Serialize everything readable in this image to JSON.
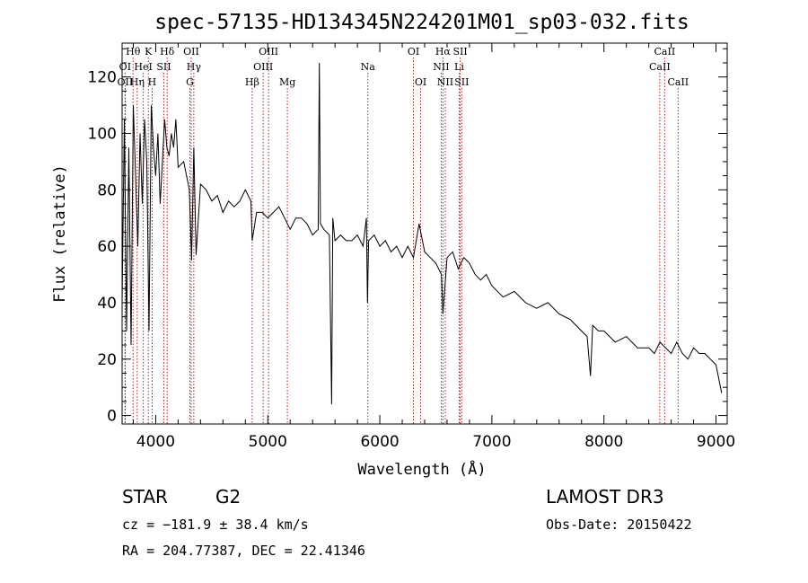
{
  "chart_data": {
    "type": "line",
    "title": "spec-57135-HD134345N224201M01_sp03-032.fits",
    "xlabel": "Wavelength (Å)",
    "ylabel": "Flux (relative)",
    "xlim": [
      3700,
      9100
    ],
    "ylim": [
      -3,
      132
    ],
    "xticks": [
      4000,
      5000,
      6000,
      7000,
      8000,
      9000
    ],
    "yticks": [
      0,
      20,
      40,
      60,
      80,
      100,
      120
    ],
    "xtick_labels": [
      "4000",
      "5000",
      "6000",
      "7000",
      "8000",
      "9000"
    ],
    "ytick_labels": [
      "0",
      "20",
      "40",
      "60",
      "80",
      "100",
      "120"
    ],
    "line_color": "#000000",
    "marker_color": "#b22222",
    "series": [
      {
        "name": "spectrum",
        "x": [
          3700,
          3720,
          3740,
          3760,
          3780,
          3800,
          3820,
          3840,
          3860,
          3880,
          3900,
          3920,
          3940,
          3960,
          3980,
          4000,
          4020,
          4040,
          4060,
          4080,
          4100,
          4120,
          4140,
          4160,
          4180,
          4200,
          4250,
          4300,
          4320,
          4340,
          4360,
          4400,
          4450,
          4500,
          4550,
          4600,
          4650,
          4700,
          4750,
          4800,
          4850,
          4861,
          4900,
          4950,
          5000,
          5050,
          5100,
          5150,
          5200,
          5250,
          5300,
          5350,
          5400,
          5450,
          5460,
          5470,
          5500,
          5550,
          5570,
          5580,
          5590,
          5600,
          5650,
          5700,
          5750,
          5800,
          5850,
          5880,
          5890,
          5900,
          5950,
          6000,
          6050,
          6100,
          6150,
          6200,
          6250,
          6300,
          6350,
          6400,
          6450,
          6500,
          6550,
          6563,
          6600,
          6650,
          6700,
          6750,
          6800,
          6850,
          6900,
          6950,
          7000,
          7100,
          7200,
          7300,
          7400,
          7500,
          7600,
          7700,
          7800,
          7850,
          7880,
          7900,
          7950,
          8000,
          8100,
          8200,
          8300,
          8400,
          8450,
          8500,
          8550,
          8600,
          8650,
          8700,
          8750,
          8800,
          8850,
          8900,
          8950,
          9000,
          9050
        ],
        "y": [
          40,
          105,
          30,
          95,
          25,
          110,
          85,
          60,
          100,
          75,
          105,
          90,
          30,
          110,
          95,
          85,
          100,
          75,
          90,
          105,
          95,
          92,
          100,
          95,
          105,
          88,
          90,
          80,
          55,
          95,
          57,
          82,
          80,
          76,
          78,
          72,
          76,
          74,
          76,
          80,
          76,
          62,
          72,
          72,
          70,
          72,
          74,
          70,
          66,
          70,
          70,
          68,
          64,
          66,
          125,
          68,
          66,
          64,
          4,
          70,
          66,
          62,
          64,
          62,
          62,
          64,
          60,
          70,
          40,
          62,
          64,
          60,
          62,
          58,
          60,
          56,
          60,
          56,
          68,
          58,
          56,
          54,
          50,
          36,
          56,
          58,
          52,
          56,
          54,
          50,
          48,
          50,
          46,
          42,
          44,
          40,
          38,
          40,
          36,
          34,
          30,
          28,
          14,
          32,
          30,
          30,
          26,
          28,
          24,
          24,
          22,
          26,
          24,
          22,
          26,
          22,
          20,
          24,
          22,
          22,
          20,
          18,
          8
        ]
      }
    ],
    "line_markers": [
      {
        "label": "Hθ",
        "x": 3798,
        "row": 0
      },
      {
        "label": "K",
        "x": 3934,
        "row": 0
      },
      {
        "label": "Hδ",
        "x": 4102,
        "row": 0
      },
      {
        "label": "OII",
        "x": 4317,
        "row": 0
      },
      {
        "label": "OIII",
        "x": 5007,
        "row": 0
      },
      {
        "label": "OI",
        "x": 6300,
        "row": 0
      },
      {
        "label": "Hα",
        "x": 6563,
        "row": 0
      },
      {
        "label": "SII",
        "x": 6717,
        "row": 0
      },
      {
        "label": "CaII",
        "x": 8542,
        "row": 0
      },
      {
        "label": "OI",
        "x": 3727,
        "row": 1
      },
      {
        "label": "HeI",
        "x": 3889,
        "row": 1
      },
      {
        "label": "SII",
        "x": 4072,
        "row": 1
      },
      {
        "label": "Hγ",
        "x": 4340,
        "row": 1
      },
      {
        "label": "OIII",
        "x": 4959,
        "row": 1
      },
      {
        "label": "Na",
        "x": 5893,
        "row": 1
      },
      {
        "label": "NII",
        "x": 6548,
        "row": 1
      },
      {
        "label": "Li",
        "x": 6708,
        "row": 1
      },
      {
        "label": "CaII",
        "x": 8498,
        "row": 1
      },
      {
        "label": "OII",
        "x": 3727,
        "row": 2
      },
      {
        "label": "Hη",
        "x": 3835,
        "row": 2
      },
      {
        "label": "H",
        "x": 3968,
        "row": 2
      },
      {
        "label": "G",
        "x": 4305,
        "row": 2
      },
      {
        "label": "Hβ",
        "x": 4861,
        "row": 2
      },
      {
        "label": "Mg",
        "x": 5175,
        "row": 2
      },
      {
        "label": "OI",
        "x": 6364,
        "row": 2
      },
      {
        "label": "NII",
        "x": 6584,
        "row": 2
      },
      {
        "label": "SII",
        "x": 6731,
        "row": 2
      },
      {
        "label": "CaII",
        "x": 8662,
        "row": 2
      }
    ]
  },
  "info": {
    "object_class": "STAR",
    "subclass": "G2",
    "survey": "LAMOST DR3",
    "cz": "cz = −181.9 ± 38.4 km/s",
    "obs_date": "Obs-Date: 20150422",
    "coords": "RA = 204.77387, DEC =  22.41346"
  }
}
